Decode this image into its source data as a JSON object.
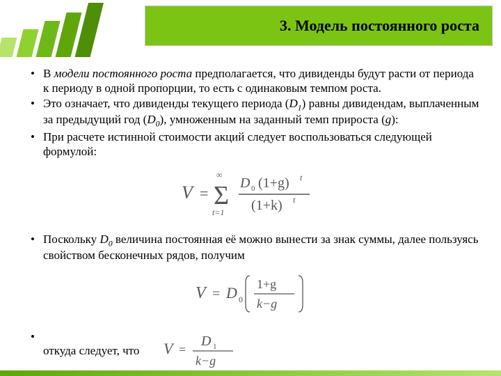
{
  "header": {
    "title": "3. Модель постоянного роста",
    "title_fontsize": 22,
    "title_color": "#000000",
    "title_bg": "#7bc414",
    "bars": {
      "colors": [
        "#b6e46a",
        "#8fd12e",
        "#6fb81a",
        "#5fa60b",
        "#4f8f07"
      ],
      "heights": [
        28,
        40,
        52,
        64,
        78
      ]
    }
  },
  "body": {
    "fontsize": 17,
    "text_color": "#000000",
    "bullets": [
      {
        "html": "В <span class=\"ital\">модели постоянного роста</span> предполагается, что дивиденды будут расти от периода к периоду в одной пропорции, то есть с одинаковым темпом роста."
      },
      {
        "html": "Это означает, что дивиденды текущего периода (<span class=\"ital\">D</span><span class=\"sub\">1</span>) равны дивидендам, выплаченным за предыдущий год (<span class=\"ital\">D</span><span class=\"sub\">0</span>), умноженным на заданный темп прироста (<span class=\"ital\">g</span>):"
      },
      {
        "html": "При расчете истинной стоимости акций следует воспользоваться следующей формулой:"
      },
      {
        "html": "Поскольку <span class=\"ital\">D</span><span class=\"sub\">0</span> величина постоянная её можно вынести за знак суммы, далее пользуясь свойством бесконечных рядов, получим"
      },
      {
        "html": " откуда следует, что"
      }
    ]
  },
  "formulas": {
    "eq1": {
      "V": "V",
      "sigma_lower": "t=1",
      "sigma_upper": "∞",
      "numerator": {
        "D": "D",
        "sub0": "0",
        "paren": "(1+g)",
        "sup_t": "t"
      },
      "denominator": {
        "paren": "(1+k)",
        "sup_t": "t"
      },
      "color": "#555555"
    },
    "eq2": {
      "V": "V",
      "D": "D",
      "sub0": "0",
      "num": "1+g",
      "den": "k−g",
      "color": "#555555"
    },
    "eq3": {
      "V": "V",
      "num": {
        "D": "D",
        "sub1": "1"
      },
      "den": "k−g",
      "color": "#555555"
    }
  },
  "footer": {
    "gradient_from": "#5fa60b",
    "gradient_to": "#b6e46a"
  }
}
